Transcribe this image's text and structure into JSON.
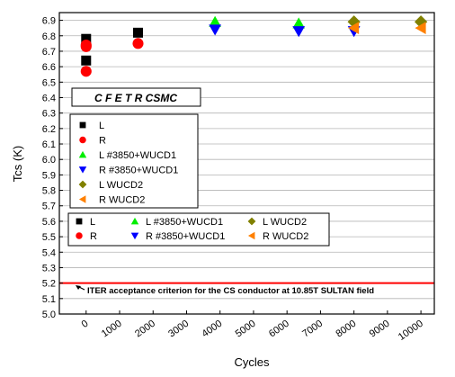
{
  "chart_data": {
    "type": "scatter",
    "title": "C F E T R CSMC",
    "xlabel": "Cycles",
    "ylabel": "Tcs   (K)",
    "xlim": [
      -800,
      10400
    ],
    "ylim": [
      5.0,
      6.95
    ],
    "x_ticks": [
      0,
      1000,
      2000,
      3000,
      4000,
      5000,
      6000,
      7000,
      8000,
      9000,
      10000
    ],
    "x_tick_labels": [
      "0",
      "1000",
      "2000",
      "3000",
      "4000",
      "5000",
      "6000",
      "7000",
      "8000",
      "9000",
      "10000"
    ],
    "y_ticks": [
      5.0,
      5.1,
      5.2,
      5.3,
      5.4,
      5.5,
      5.6,
      5.7,
      5.8,
      5.9,
      6.0,
      6.1,
      6.2,
      6.3,
      6.4,
      6.5,
      6.6,
      6.7,
      6.8,
      6.9
    ],
    "y_tick_labels": [
      "5.0",
      "5.1",
      "5.2",
      "5.3",
      "5.4",
      "5.5",
      "5.6",
      "5.7",
      "5.8",
      "5.9",
      "6.0",
      "6.1",
      "6.2",
      "6.3",
      "6.4",
      "6.5",
      "6.6",
      "6.7",
      "6.8",
      "6.9"
    ],
    "grid": "horizontal",
    "series": [
      {
        "name": "L",
        "marker": "square",
        "color": "#000000",
        "points": [
          [
            0,
            6.78
          ],
          [
            0,
            6.64
          ],
          [
            1550,
            6.82
          ]
        ]
      },
      {
        "name": "R",
        "marker": "circle",
        "color": "#ff0000",
        "points": [
          [
            0,
            6.74
          ],
          [
            0,
            6.73
          ],
          [
            0,
            6.57
          ],
          [
            1550,
            6.75
          ]
        ]
      },
      {
        "name": "L #3850+WUCD1",
        "marker": "triangle-up",
        "color": "#00ee00",
        "points": [
          [
            3850,
            6.89
          ],
          [
            6350,
            6.88
          ]
        ]
      },
      {
        "name": "R #3850+WUCD1",
        "marker": "triangle-down",
        "color": "#0000ff",
        "points": [
          [
            3850,
            6.84
          ],
          [
            6350,
            6.83
          ],
          [
            8000,
            6.83
          ]
        ]
      },
      {
        "name": "L WUCD2",
        "marker": "diamond",
        "color": "#808000",
        "points": [
          [
            8000,
            6.89
          ],
          [
            10000,
            6.89
          ]
        ]
      },
      {
        "name": "R WUCD2",
        "marker": "triangle-left",
        "color": "#ff8000",
        "points": [
          [
            8000,
            6.85
          ],
          [
            10000,
            6.85
          ]
        ]
      }
    ],
    "reference_line": {
      "y": 5.2,
      "color": "#ff0000",
      "label": "ITER acceptance criterion for the CS conductor at 10.85T SULTAN field"
    },
    "legend_1": {
      "placement": "left-middle",
      "columns": 1
    },
    "legend_2": {
      "placement": "left-lower",
      "columns": 3
    }
  }
}
